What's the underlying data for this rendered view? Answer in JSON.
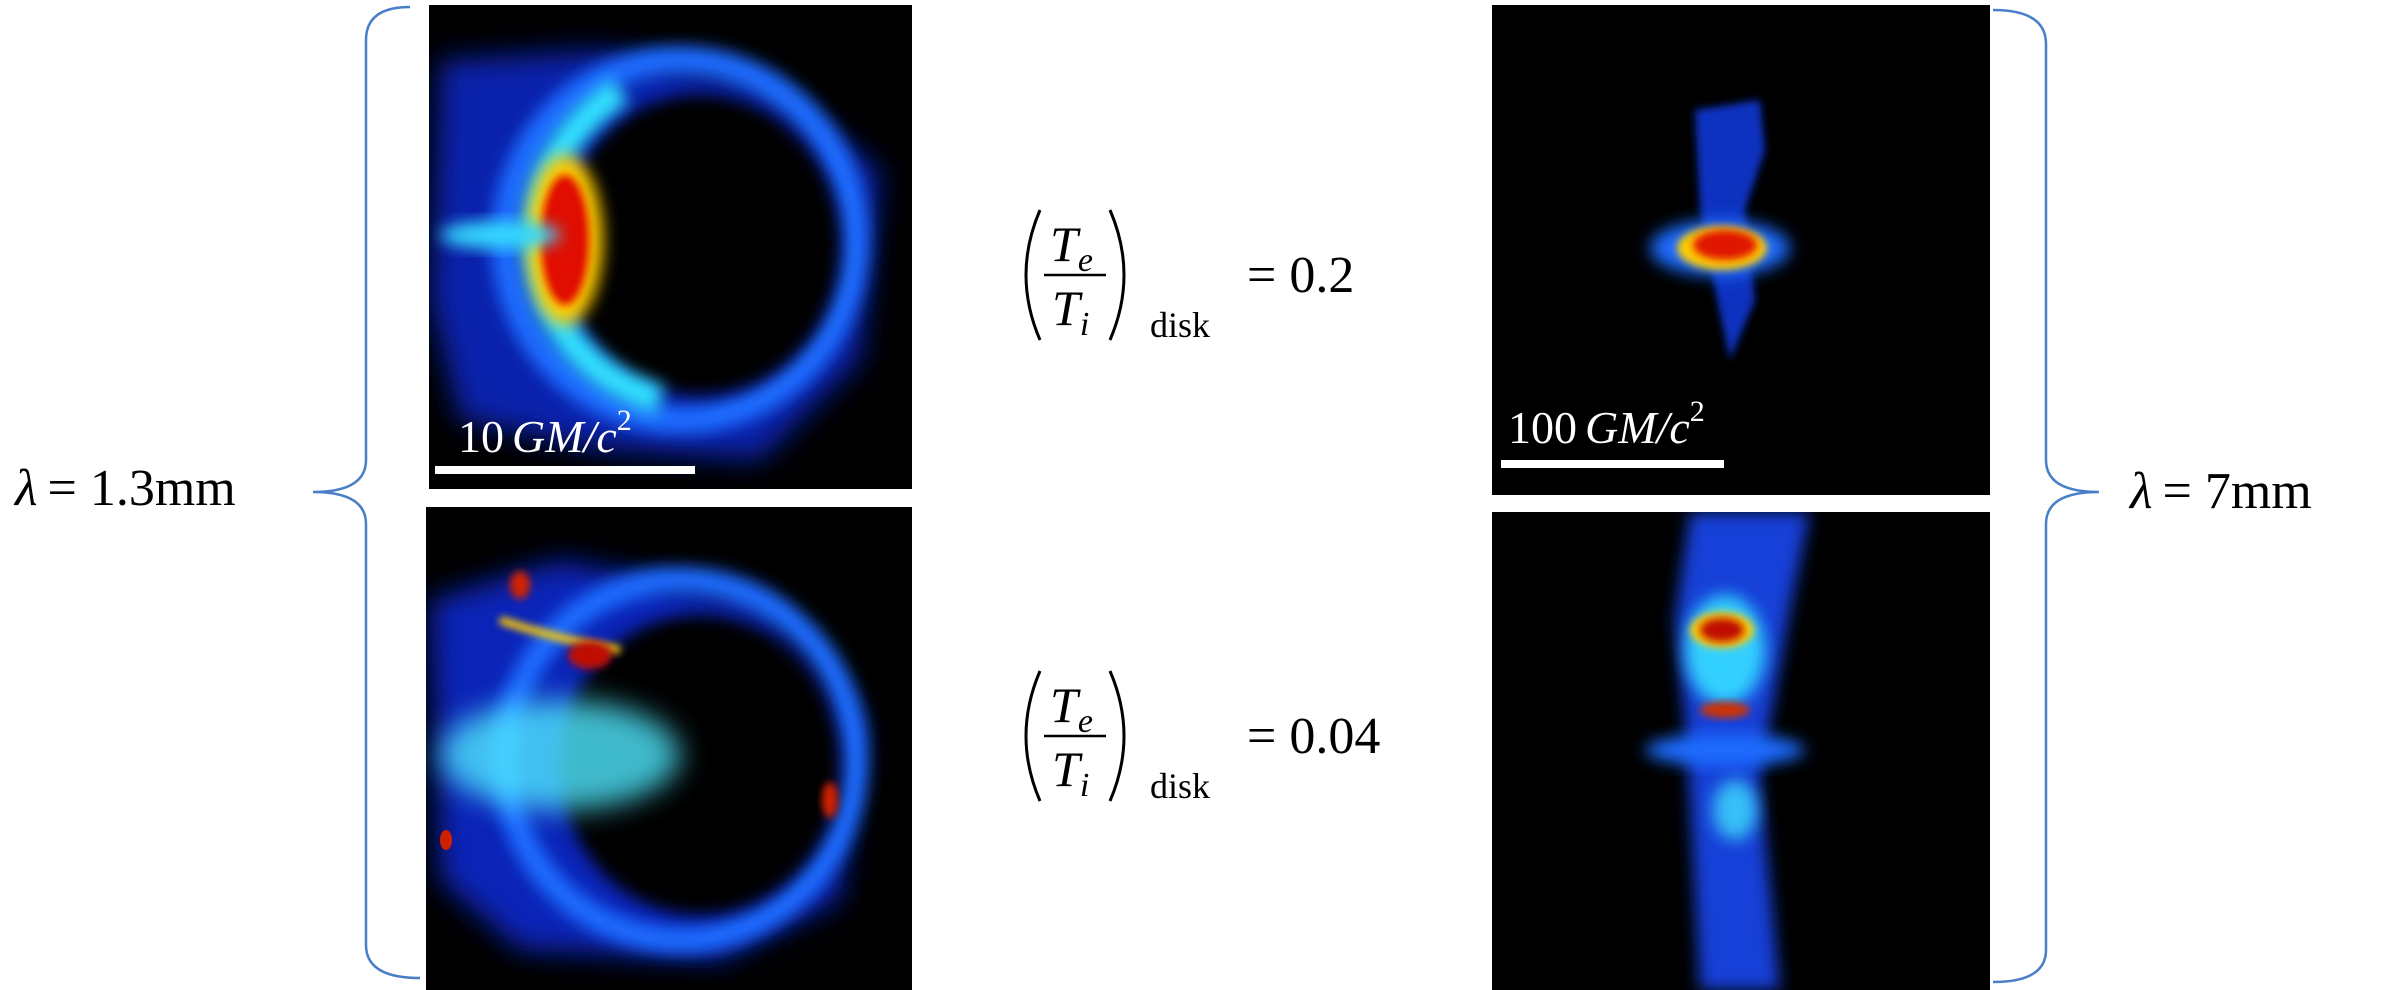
{
  "left_label": {
    "symbol": "λ",
    "text": "= 1.3mm"
  },
  "right_label": {
    "symbol": "λ",
    "text": "= 7mm"
  },
  "equations": [
    {
      "numerator": "T",
      "numerator_subscript": "e",
      "denominator": "T",
      "denominator_subscript": "i",
      "subscript": "disk",
      "rhs": "= 0.2"
    },
    {
      "numerator": "T",
      "numerator_subscript": "e",
      "denominator": "T",
      "denominator_subscript": "i",
      "subscript": "disk",
      "rhs": "= 0.04"
    }
  ],
  "scale_bars": [
    {
      "number": "10",
      "unit": "GM/c",
      "exponent": "2"
    },
    {
      "number": "100",
      "unit": "GM/c",
      "exponent": "2"
    }
  ]
}
